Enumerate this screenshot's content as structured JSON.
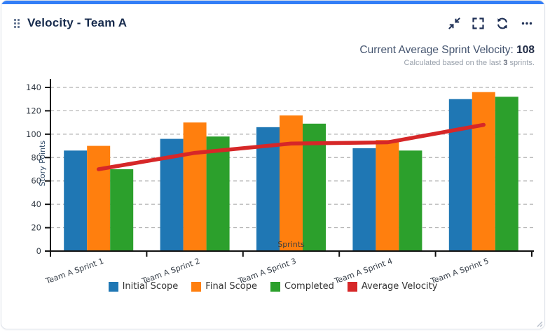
{
  "widget": {
    "title": "Velocity - Team A",
    "toolbar_icons": [
      "collapse",
      "fullscreen",
      "refresh",
      "more"
    ]
  },
  "summary": {
    "label": "Current Average Sprint Velocity:",
    "value": "108",
    "note_prefix": "Calculated based on the last",
    "note_bold": "3",
    "note_suffix": "sprints."
  },
  "colors": {
    "accent_bar": "#337ef7",
    "title_text": "#172b4d",
    "icon": "#1e2f55",
    "initial_scope": "#1f77b4",
    "final_scope": "#ff7f0e",
    "completed": "#2ca02c",
    "average_velocity": "#d62728"
  },
  "chart_data": {
    "type": "bar",
    "title": "",
    "xlabel": "Sprints",
    "ylabel": "Story Points",
    "ylim": [
      0,
      140
    ],
    "ytick_step": 20,
    "grid": "horizontal dashed",
    "legend_position": "bottom center",
    "categories": [
      "Team A Sprint 1",
      "Team A Sprint 2",
      "Team A Sprint 3",
      "Team A Sprint 4",
      "Team A Sprint 5"
    ],
    "series": [
      {
        "name": "Initial Scope",
        "color": "#1f77b4",
        "values": [
          86,
          96,
          106,
          88,
          130
        ]
      },
      {
        "name": "Final Scope",
        "color": "#ff7f0e",
        "values": [
          90,
          110,
          116,
          95,
          136
        ]
      },
      {
        "name": "Completed",
        "color": "#2ca02c",
        "values": [
          70,
          98,
          109,
          86,
          132
        ]
      }
    ],
    "line_series": {
      "name": "Average Velocity",
      "color": "#d62728",
      "type": "line",
      "values": [
        70,
        84,
        92,
        93,
        108
      ]
    }
  }
}
